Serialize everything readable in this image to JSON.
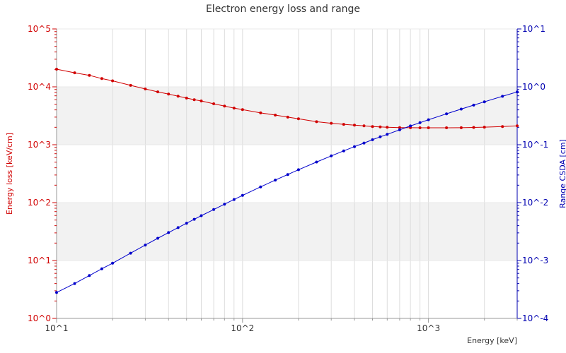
{
  "chart_data": {
    "type": "line",
    "title": "Electron energy loss and range",
    "xlabel": "Energy [keV]",
    "ylabel_left": "Energy loss [keV/cm]",
    "ylabel_right": "Range CSDA [cm]",
    "x_scale": "log",
    "y_left_scale": "log",
    "y_right_scale": "log",
    "xlim": [
      10,
      3000
    ],
    "ylim_left": [
      1,
      100000
    ],
    "ylim_right": [
      0.0001,
      10
    ],
    "x_ticks": [
      "10^1",
      "10^2",
      "10^3"
    ],
    "y_left_ticks": [
      "10^0",
      "10^1",
      "10^2",
      "10^3",
      "10^4",
      "10^5"
    ],
    "y_right_ticks": [
      "10^-4",
      "10^-3",
      "10^-2",
      "10^-1",
      "10^0",
      "10^1"
    ],
    "grid": true,
    "series": [
      {
        "name": "Energy loss",
        "axis": "left",
        "color": "#d10000",
        "x": [
          10,
          12.5,
          15,
          17.5,
          20,
          25,
          30,
          35,
          40,
          45,
          50,
          55,
          60,
          70,
          80,
          90,
          100,
          125,
          150,
          175,
          200,
          250,
          300,
          350,
          400,
          450,
          500,
          550,
          600,
          700,
          800,
          900,
          1000,
          1250,
          1500,
          1750,
          2000,
          2500,
          3000
        ],
        "y": [
          20200,
          17500,
          15800,
          13900,
          12700,
          10600,
          9200,
          8200,
          7500,
          6900,
          6400,
          6000,
          5700,
          5100,
          4650,
          4300,
          4050,
          3550,
          3250,
          3000,
          2800,
          2500,
          2350,
          2250,
          2180,
          2120,
          2060,
          2030,
          2000,
          1980,
          1970,
          1960,
          1960,
          1960,
          1970,
          1990,
          2010,
          2060,
          2120
        ]
      },
      {
        "name": "Range CSDA",
        "axis": "right",
        "color": "#0000cc",
        "x": [
          10,
          12.5,
          15,
          17.5,
          20,
          25,
          30,
          35,
          40,
          45,
          50,
          55,
          60,
          70,
          80,
          90,
          100,
          125,
          150,
          175,
          200,
          250,
          300,
          350,
          400,
          450,
          500,
          550,
          600,
          700,
          800,
          900,
          1000,
          1250,
          1500,
          1750,
          2000,
          2500,
          3000
        ],
        "y": [
          0.00028,
          0.0004,
          0.00055,
          0.00072,
          0.0009,
          0.00134,
          0.00185,
          0.00242,
          0.00304,
          0.0037,
          0.0044,
          0.00515,
          0.00594,
          0.0076,
          0.0094,
          0.0113,
          0.0133,
          0.0187,
          0.0245,
          0.0306,
          0.037,
          0.0503,
          0.0642,
          0.0784,
          0.0928,
          0.107,
          0.122,
          0.137,
          0.151,
          0.181,
          0.211,
          0.24,
          0.27,
          0.342,
          0.413,
          0.483,
          0.551,
          0.686,
          0.818
        ]
      }
    ]
  },
  "colors": {
    "left_axis": "#d10000",
    "right_axis": "#0000b0",
    "band_fill": "#f2f2f2",
    "grid": "#dddddd"
  }
}
